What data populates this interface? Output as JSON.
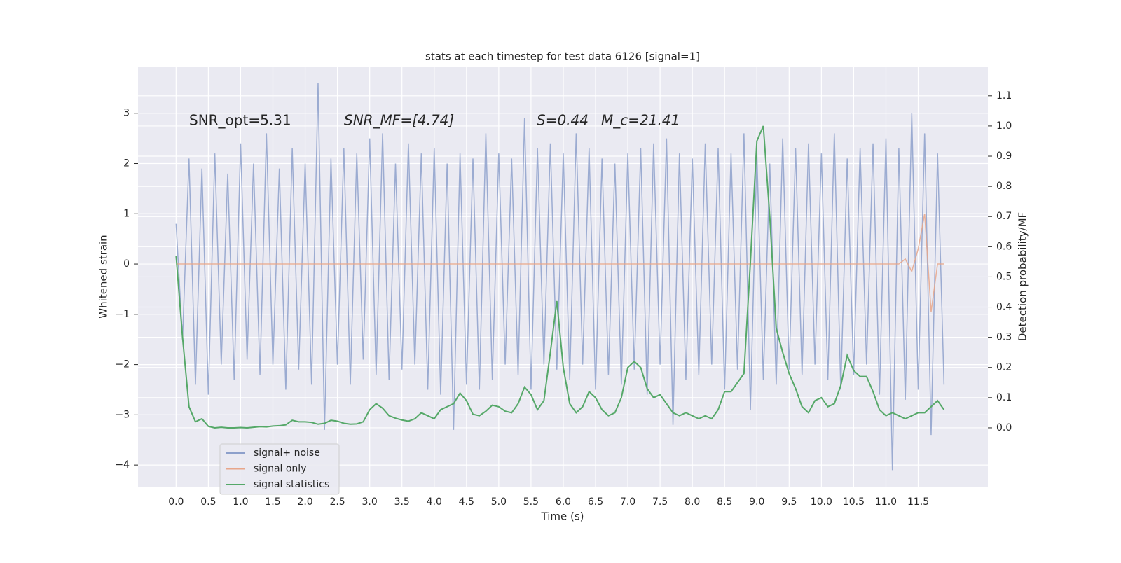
{
  "chart_data": {
    "type": "line",
    "title": "stats at each timestep for test data 6126 [signal=1]",
    "xlabel": "Time (s)",
    "ylabel": "Whitened strain",
    "y2label": "Detection probability/MF",
    "annotations": [
      "SNR_opt=5.31",
      "SNR_MF=[4.74]",
      "S=0.44",
      "M_c=21.41"
    ],
    "xlim": [
      -0.59,
      12.58
    ],
    "ylim": [
      -4.43,
      3.93
    ],
    "y2lim": [
      -0.195,
      1.197
    ],
    "grid": true,
    "legend": "lower left",
    "xticks": [
      {
        "value": 0,
        "label": "0.0"
      },
      {
        "value": 0.5,
        "label": "0.5"
      },
      {
        "value": 1,
        "label": "1.0"
      },
      {
        "value": 1.5,
        "label": "1.5"
      },
      {
        "value": 2,
        "label": "2.0"
      },
      {
        "value": 2.5,
        "label": "2.5"
      },
      {
        "value": 3,
        "label": "3.0"
      },
      {
        "value": 3.5,
        "label": "3.5"
      },
      {
        "value": 4,
        "label": "4.0"
      },
      {
        "value": 4.5,
        "label": "4.5"
      },
      {
        "value": 5,
        "label": "5.0"
      },
      {
        "value": 5.5,
        "label": "5.5"
      },
      {
        "value": 6,
        "label": "6.0"
      },
      {
        "value": 6.5,
        "label": "6.5"
      },
      {
        "value": 7,
        "label": "7.0"
      },
      {
        "value": 7.5,
        "label": "7.5"
      },
      {
        "value": 8,
        "label": "8.0"
      },
      {
        "value": 8.5,
        "label": "8.5"
      },
      {
        "value": 9,
        "label": "9.0"
      },
      {
        "value": 9.5,
        "label": "9.5"
      },
      {
        "value": 10,
        "label": "10.0"
      },
      {
        "value": 10.5,
        "label": "10.5"
      },
      {
        "value": 11,
        "label": "11.0"
      },
      {
        "value": 11.5,
        "label": "11.5"
      }
    ],
    "yticks": [
      {
        "value": -4,
        "label": "−4"
      },
      {
        "value": -3,
        "label": "−3"
      },
      {
        "value": -2,
        "label": "−2"
      },
      {
        "value": -1,
        "label": "−1"
      },
      0,
      1,
      2,
      3
    ],
    "y2ticks": [
      {
        "value": 0,
        "label": "0.0"
      },
      0.1,
      0.2,
      0.3,
      0.4,
      0.5,
      0.6,
      0.7,
      0.8,
      0.9,
      {
        "value": 1,
        "label": "1.0"
      },
      1.1
    ],
    "x": [
      0,
      0.1,
      0.2,
      0.3,
      0.4,
      0.5,
      0.6,
      0.7,
      0.8,
      0.9,
      1,
      1.1,
      1.2,
      1.3,
      1.4,
      1.5,
      1.6,
      1.7,
      1.8,
      1.9,
      2,
      2.1,
      2.2,
      2.3,
      2.4,
      2.5,
      2.6,
      2.7,
      2.8,
      2.9,
      3,
      3.1,
      3.2,
      3.3,
      3.4,
      3.5,
      3.6,
      3.7,
      3.8,
      3.9,
      4,
      4.1,
      4.2,
      4.3,
      4.4,
      4.5,
      4.6,
      4.7,
      4.8,
      4.9,
      5,
      5.1,
      5.2,
      5.3,
      5.4,
      5.5,
      5.6,
      5.7,
      5.8,
      5.9,
      6,
      6.1,
      6.2,
      6.3,
      6.4,
      6.5,
      6.6,
      6.7,
      6.8,
      6.9,
      7,
      7.1,
      7.2,
      7.3,
      7.4,
      7.5,
      7.6,
      7.7,
      7.8,
      7.9,
      8,
      8.1,
      8.2,
      8.3,
      8.4,
      8.5,
      8.6,
      8.7,
      8.8,
      8.9,
      9,
      9.1,
      9.2,
      9.3,
      9.4,
      9.5,
      9.6,
      9.7,
      9.8,
      9.9,
      10,
      10.1,
      10.2,
      10.3,
      10.4,
      10.5,
      10.6,
      10.7,
      10.8,
      10.9,
      11,
      11.1,
      11.2,
      11.3,
      11.4,
      11.5,
      11.6,
      11.7,
      11.8,
      11.9
    ],
    "series": [
      {
        "name": "signal+ noise",
        "color": "#8da0cb",
        "axis": "y",
        "values": [
          0.8,
          -1.5,
          2.1,
          -2.4,
          1.9,
          -2.6,
          2.2,
          -2.0,
          1.8,
          -2.3,
          2.4,
          -1.9,
          2.0,
          -2.2,
          2.6,
          -2.0,
          1.9,
          -2.5,
          2.3,
          -2.1,
          2.0,
          -2.4,
          3.6,
          -3.3,
          2.1,
          -2.0,
          2.3,
          -2.4,
          2.2,
          -1.9,
          2.5,
          -2.2,
          2.6,
          -2.3,
          2.0,
          -2.1,
          2.4,
          -2.0,
          2.2,
          -2.5,
          2.3,
          -2.6,
          2.0,
          -3.3,
          2.2,
          -2.4,
          2.1,
          -2.5,
          2.6,
          -2.3,
          2.2,
          -2.0,
          2.1,
          -2.2,
          2.9,
          -2.5,
          2.3,
          -2.0,
          2.4,
          -2.1,
          2.2,
          -2.3,
          2.6,
          -2.0,
          2.3,
          -2.5,
          2.1,
          -2.2,
          2.0,
          -2.4,
          2.2,
          -2.1,
          2.3,
          -2.6,
          2.4,
          -2.0,
          2.5,
          -3.2,
          2.2,
          -2.3,
          2.1,
          -2.2,
          2.4,
          -2.0,
          2.3,
          -2.5,
          2.2,
          -2.1,
          2.6,
          -2.9,
          2.2,
          -2.3,
          2.0,
          -2.4,
          2.5,
          -2.1,
          2.3,
          -2.2,
          2.4,
          -2.0,
          2.2,
          -2.3,
          2.6,
          -2.5,
          2.1,
          -2.2,
          2.3,
          -2.0,
          2.4,
          -2.6,
          2.5,
          -4.1,
          2.3,
          -2.7,
          3.0,
          -2.5,
          2.6,
          -3.4,
          2.2,
          -2.4
        ]
      },
      {
        "name": "signal only",
        "color": "#e8a68a",
        "axis": "y",
        "values": [
          0,
          0,
          0,
          0,
          0,
          0,
          0,
          0,
          0,
          0,
          0,
          0,
          0,
          0,
          0,
          0,
          0,
          0,
          0,
          0,
          0,
          0,
          0,
          0,
          0,
          0,
          0,
          0,
          0,
          0,
          0,
          0,
          0,
          0,
          0,
          0,
          0,
          0,
          0,
          0,
          0,
          0,
          0,
          0,
          0,
          0,
          0,
          0,
          0,
          0,
          0,
          0,
          0,
          0,
          0,
          0,
          0,
          0,
          0,
          0,
          0,
          0,
          0,
          0,
          0,
          0,
          0,
          0,
          0,
          0,
          0,
          0,
          0,
          0,
          0,
          0,
          0,
          0,
          0,
          0,
          0,
          0,
          0,
          0,
          0,
          0,
          0,
          0,
          0,
          0,
          0,
          0,
          0,
          0,
          0,
          0,
          0,
          0,
          0,
          0,
          0,
          0,
          0,
          0,
          0,
          0,
          0,
          0,
          0,
          0,
          0,
          0,
          0,
          0.1,
          -0.15,
          0.3,
          1.0,
          -0.95,
          0,
          0
        ]
      },
      {
        "name": "signal statistics",
        "color": "#55a868",
        "axis": "y2",
        "values": [
          0.57,
          0.3,
          0.07,
          0.02,
          0.03,
          0.005,
          0,
          0.002,
          0,
          0,
          0.001,
          0,
          0.002,
          0.004,
          0.003,
          0.006,
          0.007,
          0.01,
          0.025,
          0.02,
          0.02,
          0.018,
          0.012,
          0.015,
          0.025,
          0.022,
          0.015,
          0.012,
          0.013,
          0.02,
          0.06,
          0.08,
          0.065,
          0.04,
          0.032,
          0.026,
          0.022,
          0.03,
          0.05,
          0.04,
          0.03,
          0.06,
          0.07,
          0.08,
          0.115,
          0.09,
          0.045,
          0.04,
          0.055,
          0.075,
          0.07,
          0.055,
          0.05,
          0.08,
          0.135,
          0.11,
          0.06,
          0.09,
          0.25,
          0.42,
          0.2,
          0.08,
          0.05,
          0.07,
          0.12,
          0.1,
          0.06,
          0.04,
          0.05,
          0.1,
          0.2,
          0.22,
          0.2,
          0.13,
          0.1,
          0.11,
          0.08,
          0.05,
          0.04,
          0.05,
          0.04,
          0.03,
          0.04,
          0.03,
          0.06,
          0.12,
          0.12,
          0.15,
          0.18,
          0.55,
          0.95,
          1.0,
          0.7,
          0.33,
          0.25,
          0.18,
          0.13,
          0.07,
          0.05,
          0.09,
          0.1,
          0.07,
          0.08,
          0.14,
          0.24,
          0.19,
          0.17,
          0.17,
          0.12,
          0.06,
          0.04,
          0.05,
          0.04,
          0.03,
          0.04,
          0.05,
          0.05,
          0.07,
          0.09,
          0.06
        ]
      }
    ]
  }
}
